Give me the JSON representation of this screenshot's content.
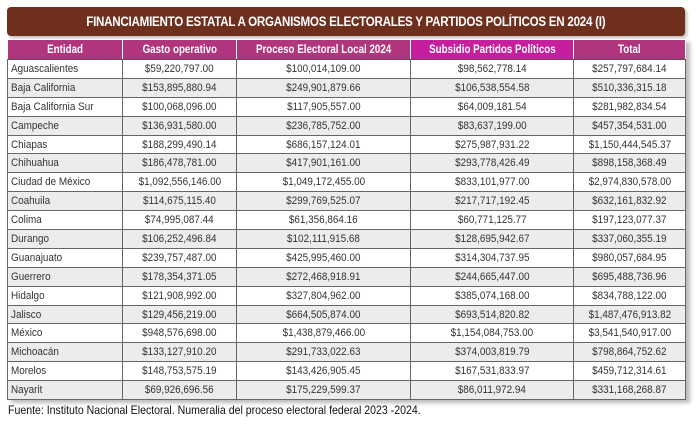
{
  "title": "FINANCIAMIENTO ESTATAL A ORGANISMOS ELECTORALES Y PARTIDOS POLÍTICOS EN 2024 (I)",
  "columns": [
    "Entidad",
    "Gasto operativo",
    "Proceso Electoral Local 2024",
    "Subsidio Partidos Políticos",
    "Total"
  ],
  "rows": [
    [
      "Aguascalientes",
      "$59,220,797.00",
      "$100,014,109.00",
      "$98,562,778.14",
      "$257,797,684.14"
    ],
    [
      "Baja California",
      "$153,895,880.94",
      "$249,901,879.66",
      "$106,538,554.58",
      "$510,336,315.18"
    ],
    [
      "Baja California Sur",
      "$100,068,096.00",
      "$117,905,557.00",
      "$64,009,181.54",
      "$281,982,834.54"
    ],
    [
      "Campeche",
      "$136,931,580.00",
      "$236,785,752.00",
      "$83,637,199.00",
      "$457,354,531.00"
    ],
    [
      "Chiapas",
      "$188,299,490.14",
      "$686,157,124.01",
      "$275,987,931.22",
      "$1,150,444,545.37"
    ],
    [
      "Chihuahua",
      "$186,478,781.00",
      "$417,901,161.00",
      "$293,778,426.49",
      "$898,158,368.49"
    ],
    [
      "Ciudad de México",
      "$1,092,556,146.00",
      "$1,049,172,455.00",
      "$833,101,977.00",
      "$2,974,830,578.00"
    ],
    [
      "Coahuila",
      "$114,675,115.40",
      "$299,769,525.07",
      "$217,717,192.45",
      "$632,161,832.92"
    ],
    [
      "Colima",
      "$74,995,087.44",
      "$61,356,864.16",
      "$60,771,125.77",
      "$197,123,077.37"
    ],
    [
      "Durango",
      "$106,252,496.84",
      "$102,111,915.68",
      "$128,695,942.67",
      "$337,060,355.19"
    ],
    [
      "Guanajuato",
      "$239,757,487.00",
      "$425,995,460.00",
      "$314,304,737.95",
      "$980,057,684.95"
    ],
    [
      "Guerrero",
      "$178,354,371.05",
      "$272,468,918.91",
      "$244,665,447.00",
      "$695,488,736.96"
    ],
    [
      "Hidalgo",
      "$121,908,992.00",
      "$327,804,962.00",
      "$385,074,168.00",
      "$834,788,122.00"
    ],
    [
      "Jalisco",
      "$129,456,219.00",
      "$664,505,874.00",
      "$693,514,820.82",
      "$1,487,476,913.82"
    ],
    [
      "México",
      "$948,576,698.00",
      "$1,438,879,466.00",
      "$1,154,084,753.00",
      "$3,541,540,917.00"
    ],
    [
      "Michoacán",
      "$133,127,910.20",
      "$291,733,022.63",
      "$374,003,819.79",
      "$798,864,752.62"
    ],
    [
      "Morelos",
      "$148,753,575.19",
      "$143,426,905.45",
      "$167,531,833.97",
      "$459,712,314.61"
    ],
    [
      "Nayarit",
      "$69,926,696.56",
      "$175,229,599.37",
      "$86,011,972.94",
      "$331,168,268.87"
    ]
  ],
  "source": "Fuente: Instituto Nacional Electoral. Numeralia del proceso electoral federal 2023 -2024.",
  "colors": {
    "title_bg": "#6e2f1d",
    "header_bg": "#b0357c",
    "header_highlight": "#c61f9e"
  }
}
